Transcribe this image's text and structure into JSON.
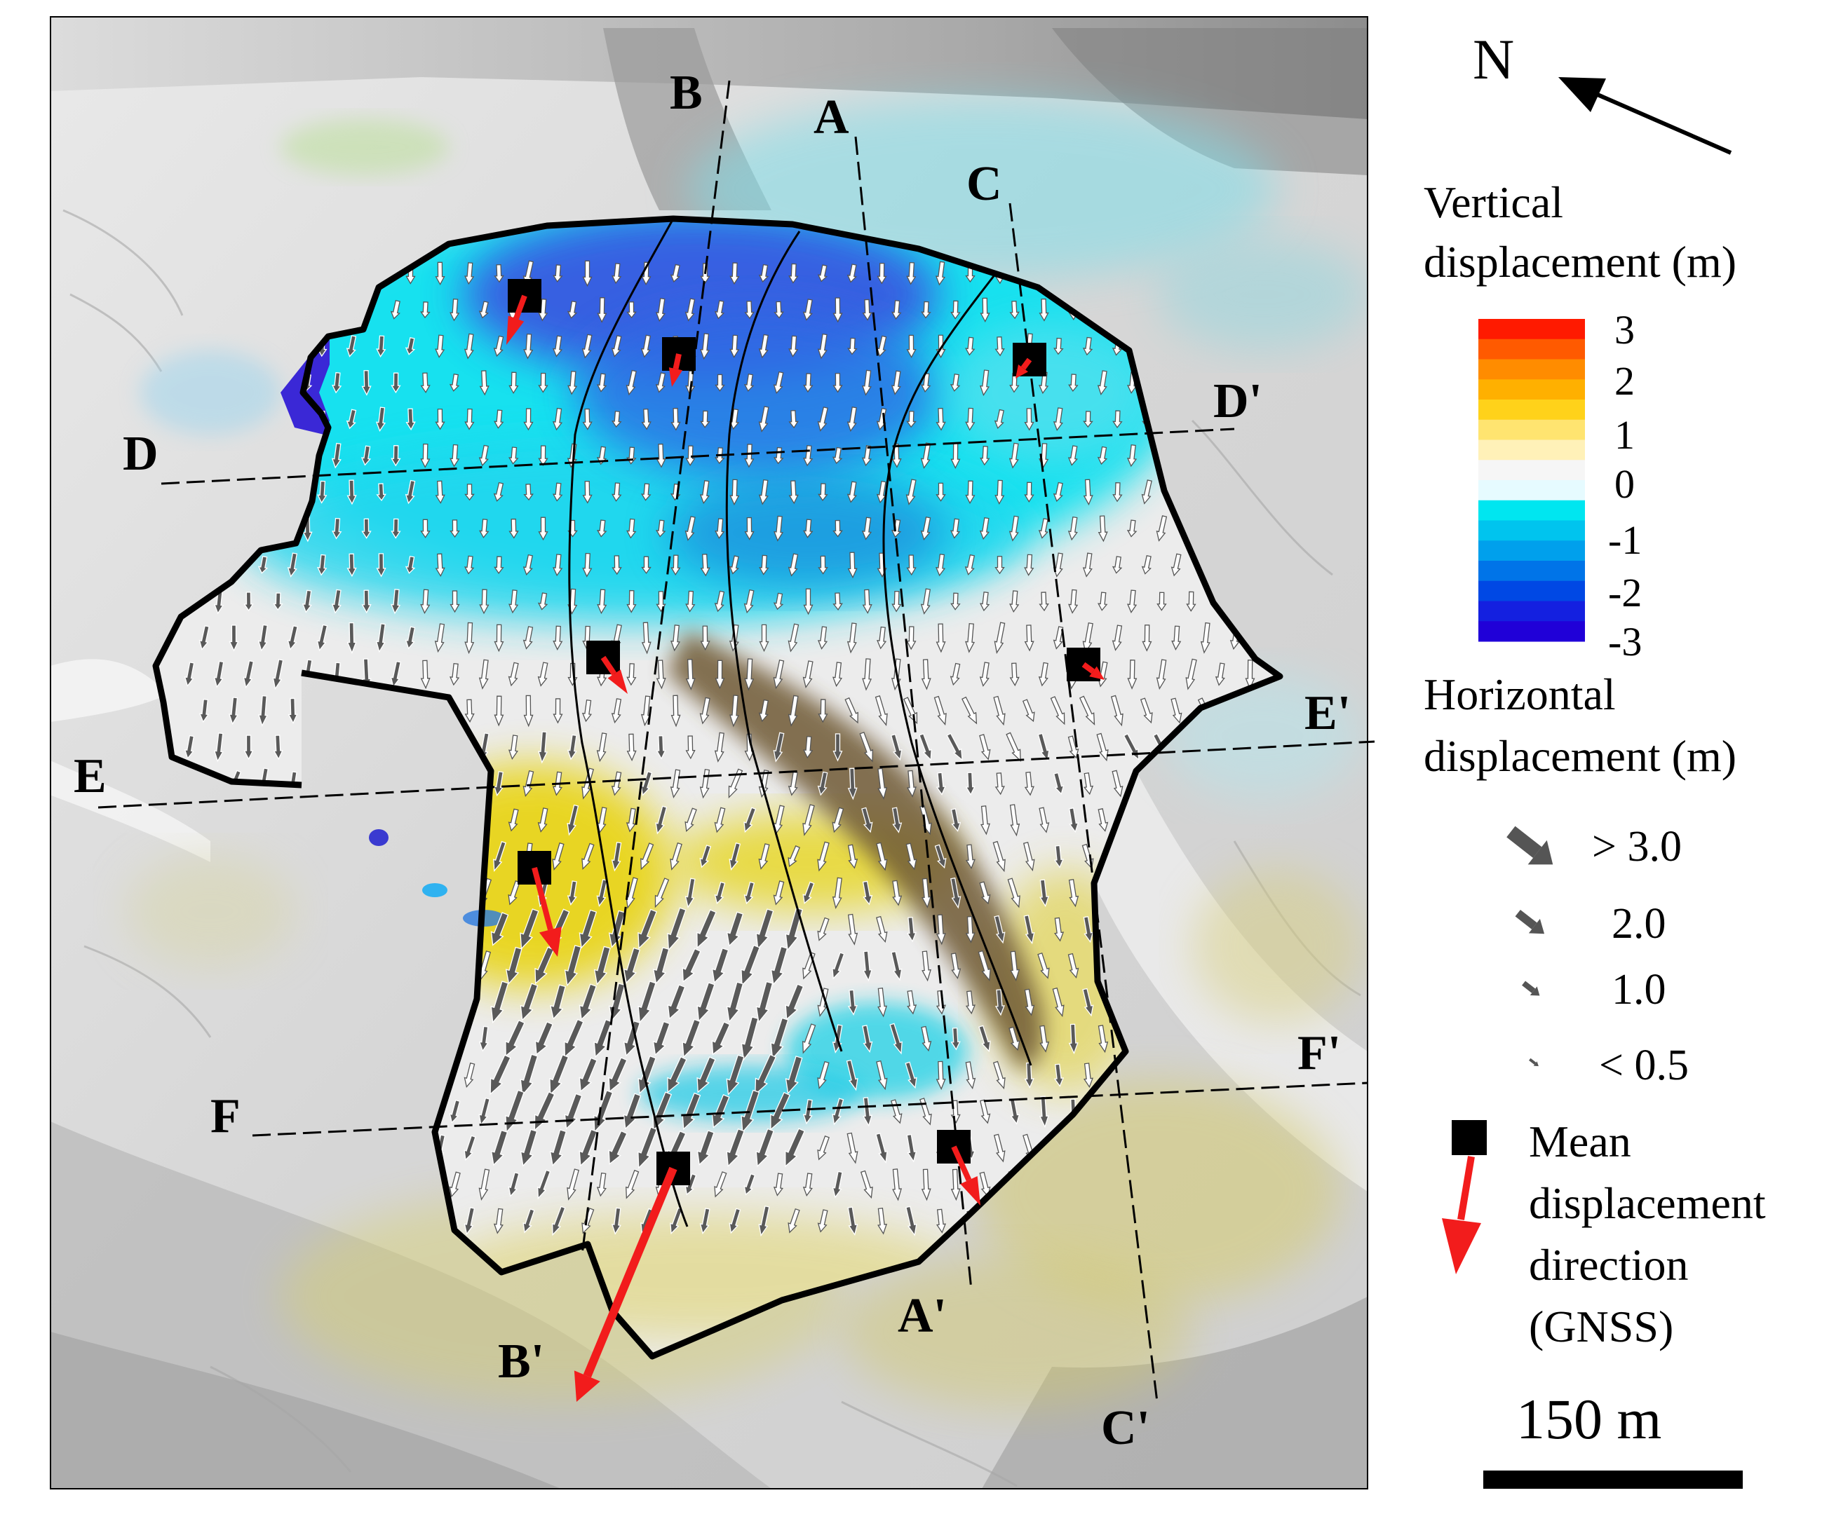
{
  "north": {
    "label": "N"
  },
  "profiles": [
    {
      "start": "A",
      "end": "A'"
    },
    {
      "start": "B",
      "end": "B'"
    },
    {
      "start": "C",
      "end": "C'"
    },
    {
      "start": "D",
      "end": "D'"
    },
    {
      "start": "E",
      "end": "E'"
    },
    {
      "start": "F",
      "end": "F'"
    }
  ],
  "legend": {
    "vertical_title_1": "Vertical",
    "vertical_title_2": "displacement (m)",
    "colorbar_ticks": [
      "3",
      "2",
      "1",
      "0",
      "-1",
      "-2",
      "-3"
    ],
    "colorbar_colors": [
      "#ff1a00",
      "#ff5a00",
      "#ff8c00",
      "#ffb000",
      "#ffd21a",
      "#ffe470",
      "#fff1b8",
      "#f6f6f6",
      "#e6fbff",
      "#00e6f0",
      "#00c4ee",
      "#00a0ec",
      "#0074e8",
      "#0048e4",
      "#1420e0",
      "#2000d8"
    ],
    "horizontal_title_1": "Horizontal",
    "horizontal_title_2": "displacement (m)",
    "horizontal_classes": [
      "> 3.0",
      "2.0",
      "1.0",
      "< 0.5"
    ],
    "gnss_1": "Mean",
    "gnss_2": "displacement",
    "gnss_3": "direction",
    "gnss_4": "(GNSS)",
    "scale_label": "150 m"
  },
  "colors": {
    "subsidence": "#00d8ee",
    "deep_subsidence": "#3a2ad6",
    "uplift": "#e6d400",
    "gnss_arrow": "#f21c1c",
    "boundary": "#000000"
  }
}
